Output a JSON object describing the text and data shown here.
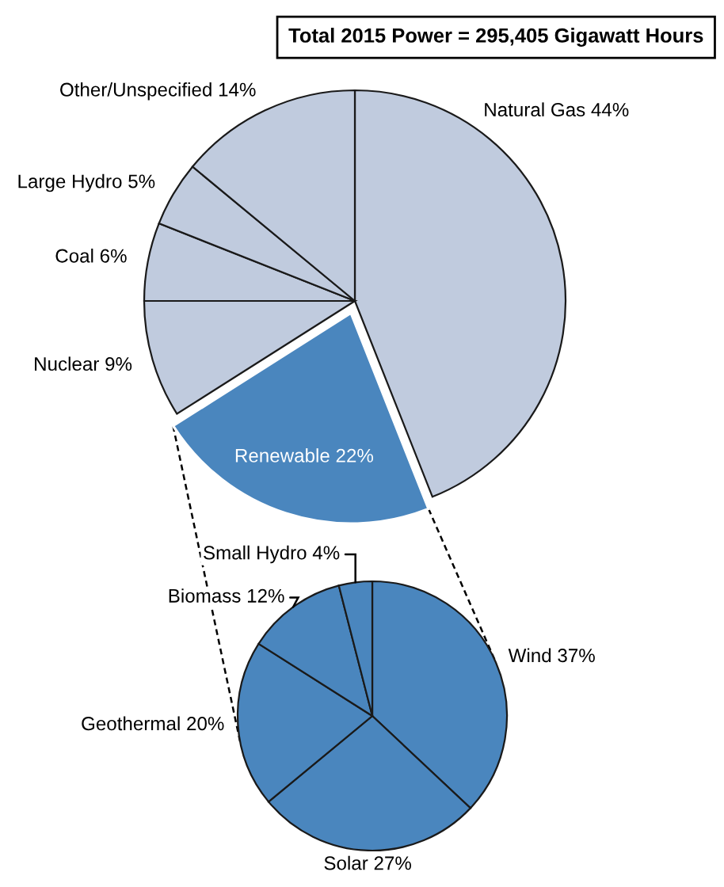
{
  "chart_data": [
    {
      "type": "pie",
      "title": "Total 2015 Power = 295,405 Gigawatt Hours",
      "categories": [
        "Natural Gas",
        "Renewable",
        "Nuclear",
        "Coal",
        "Large Hydro",
        "Other/Unspecified"
      ],
      "values": [
        44,
        22,
        9,
        6,
        5,
        14
      ],
      "value_labels": [
        "44%",
        "22%",
        "9%",
        "6%",
        "5%",
        "14%"
      ],
      "colors": [
        "#c0cbde",
        "#4a86be",
        "#c0cbde",
        "#c0cbde",
        "#c0cbde",
        "#c0cbde"
      ]
    },
    {
      "type": "pie",
      "categories": [
        "Wind",
        "Solar",
        "Geothermal",
        "Biomass",
        "Small Hydro"
      ],
      "values": [
        37,
        27,
        20,
        12,
        4
      ],
      "value_labels": [
        "37%",
        "27%",
        "20%",
        "12%",
        "4%"
      ],
      "colors": [
        "#4a86be",
        "#4a86be",
        "#4a86be",
        "#4a86be",
        "#4a86be"
      ]
    }
  ]
}
